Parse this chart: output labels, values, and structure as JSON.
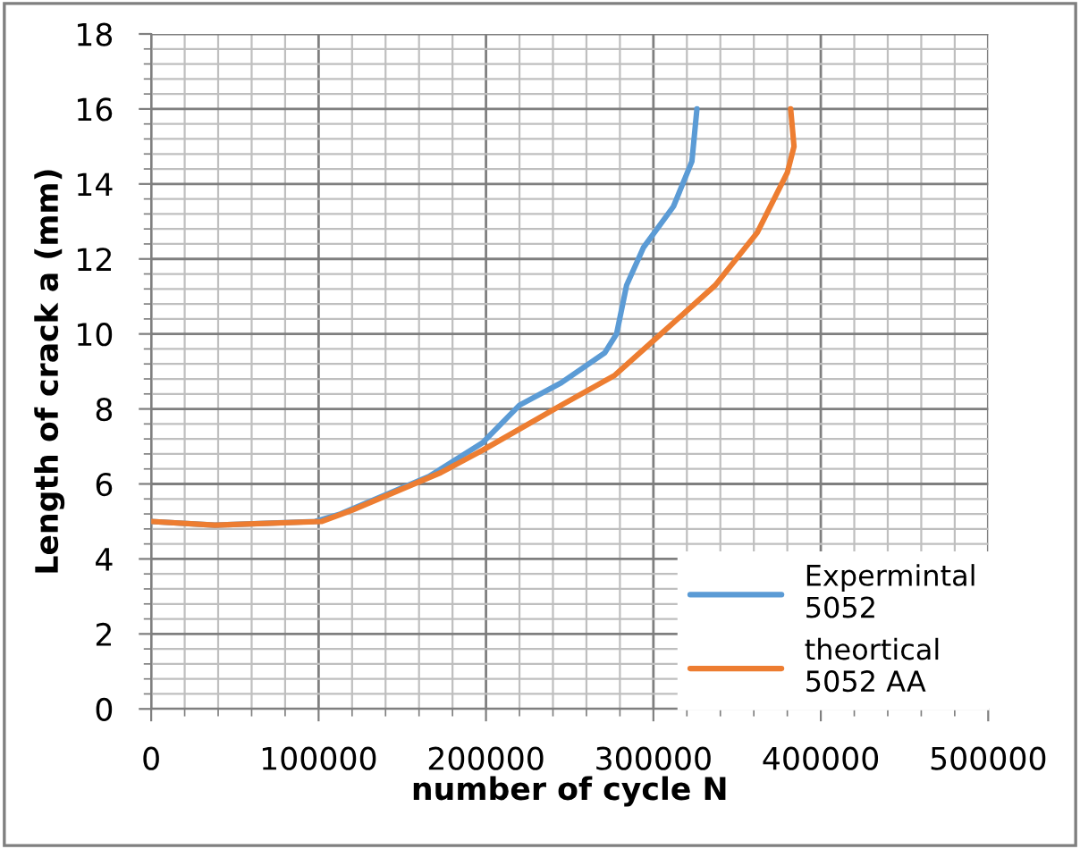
{
  "chart_data": {
    "type": "line",
    "xlabel": "number of cycle N",
    "ylabel": "Length of crack a (mm)",
    "xlim": [
      0,
      500000
    ],
    "xticks": [
      0,
      100000,
      200000,
      300000,
      400000,
      500000
    ],
    "ylim": [
      0,
      18
    ],
    "yticks": [
      0,
      2,
      4,
      6,
      8,
      10,
      12,
      14,
      16,
      18
    ],
    "grid": true,
    "legend": "bottom right",
    "marker": "none",
    "line_style": "solid",
    "series": [
      {
        "name": "Expermintal\n5052",
        "color": "#5b9bd5",
        "x": [
          0,
          38000,
          98000,
          113000,
          166000,
          198000,
          209000,
          220000,
          245000,
          271000,
          278000,
          284000,
          294000,
          312000,
          323000,
          326000
        ],
        "values": [
          5.0,
          4.9,
          5.0,
          5.2,
          6.2,
          7.1,
          7.6,
          8.1,
          8.7,
          9.5,
          10.0,
          11.3,
          12.3,
          13.4,
          14.6,
          16.0
        ]
      },
      {
        "name": "theortical\n5052 AA",
        "color": "#ed7d31",
        "x": [
          0,
          38000,
          102000,
          120000,
          173000,
          198000,
          245000,
          277000,
          302000,
          337000,
          362000,
          380000,
          384000,
          382000
        ],
        "values": [
          5.0,
          4.9,
          5.0,
          5.3,
          6.3,
          6.9,
          8.1,
          8.9,
          9.9,
          11.3,
          12.7,
          14.3,
          15.0,
          16.0
        ]
      }
    ]
  }
}
